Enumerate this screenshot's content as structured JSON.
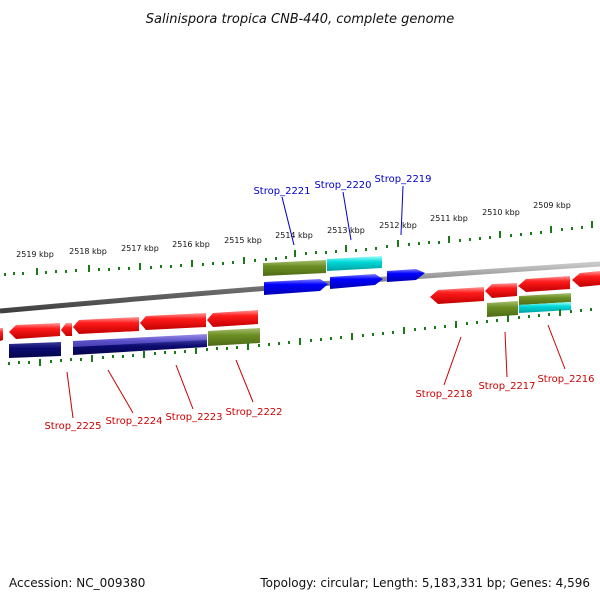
{
  "title": "Salinispora tropica CNB-440, complete genome",
  "accession": "Accession: NC_009380",
  "summary": "Topology: circular; Length: 5,183,331 bp; Genes: 4,596",
  "kbp_ticks_top": [
    "2514 kbp",
    "2513 kbp",
    "2512 kbp",
    "2511 kbp",
    "2510 kbp",
    "2509 kbp"
  ],
  "kbp_ticks_left": [
    "2519 kbp",
    "2518 kbp",
    "2517 kbp",
    "2516 kbp",
    "2515 kbp"
  ],
  "forward_genes": [
    {
      "name": "Strop_2221",
      "color": "#0000cc"
    },
    {
      "name": "Strop_2220",
      "color": "#0000cc"
    },
    {
      "name": "Strop_2219",
      "color": "#0000cc"
    }
  ],
  "reverse_genes": [
    {
      "name": "Strop_2225",
      "color": "#cc0000"
    },
    {
      "name": "Strop_2224",
      "color": "#cc0000"
    },
    {
      "name": "Strop_2223",
      "color": "#cc0000"
    },
    {
      "name": "Strop_2222",
      "color": "#cc0000"
    },
    {
      "name": "Strop_2218",
      "color": "#cc0000"
    },
    {
      "name": "Strop_2217",
      "color": "#cc0000"
    },
    {
      "name": "Strop_2216",
      "color": "#cc0000"
    }
  ],
  "colors": {
    "forward_cds": "#0000ee",
    "reverse_cds": "#ee0000",
    "feature_green": "#6b8e23",
    "feature_cyan": "#00cccc",
    "feature_navy": "#0a0a6e",
    "feature_purple": "#5a4fc8",
    "tick_green": "#1a7a1a",
    "backbone": "#7a7a7a"
  }
}
